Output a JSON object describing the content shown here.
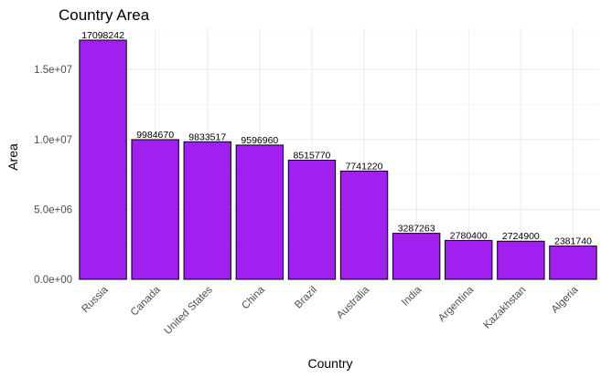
{
  "chart_data": {
    "type": "bar",
    "title": "Country Area",
    "xlabel": "Country",
    "ylabel": "Area",
    "categories": [
      "Russia",
      "Canada",
      "United States",
      "China",
      "Brazil",
      "Australia",
      "India",
      "Argentina",
      "Kazakhstan",
      "Algeria"
    ],
    "values": [
      17098242,
      9984670,
      9833517,
      9596960,
      8515770,
      7741220,
      3287263,
      2780400,
      2724900,
      2381740
    ],
    "data_labels": [
      "17098242",
      "9984670",
      "9833517",
      "9596960",
      "8515770",
      "7741220",
      "3287263",
      "2780400",
      "2724900",
      "2381740"
    ],
    "ylim": [
      0,
      17098242
    ],
    "yticks": [
      0,
      5000000,
      10000000,
      15000000
    ],
    "ytick_labels": [
      "0.0e+00",
      "5.0e+06",
      "1.0e+07",
      "1.5e+07"
    ],
    "bar_color": "#a020f0",
    "bar_outline": "#000000",
    "grid": true,
    "legend": "none",
    "x_tick_rotation": "45deg"
  }
}
